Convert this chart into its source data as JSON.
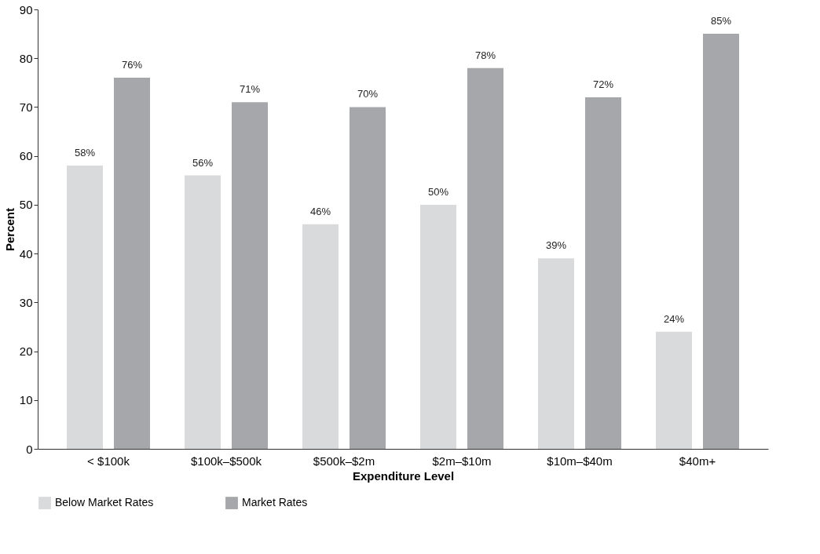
{
  "chart_data": {
    "type": "bar",
    "xlabel": "Expenditure Level",
    "ylabel": "Percent",
    "categories": [
      "< $100k",
      "$100k–$500k",
      "$500k–$2m",
      "$2m–$10m",
      "$10m–$40m",
      "$40m+"
    ],
    "series": [
      {
        "name": "Below Market Rates",
        "color": "#d9dadc",
        "values": [
          58,
          56,
          46,
          50,
          39,
          24
        ],
        "value_labels": [
          "58%",
          "56%",
          "46%",
          "50%",
          "39%",
          "24%"
        ]
      },
      {
        "name": "Market Rates",
        "color": "#a6a7aa",
        "values": [
          76,
          71,
          70,
          78,
          72,
          85
        ],
        "value_labels": [
          "76%",
          "71%",
          "70%",
          "78%",
          "72%",
          "85%"
        ]
      }
    ],
    "ylim": [
      0,
      90
    ],
    "yticks": [
      0,
      10,
      20,
      30,
      40,
      50,
      60,
      70,
      80,
      90
    ],
    "grid": false,
    "legend": "bottom"
  }
}
